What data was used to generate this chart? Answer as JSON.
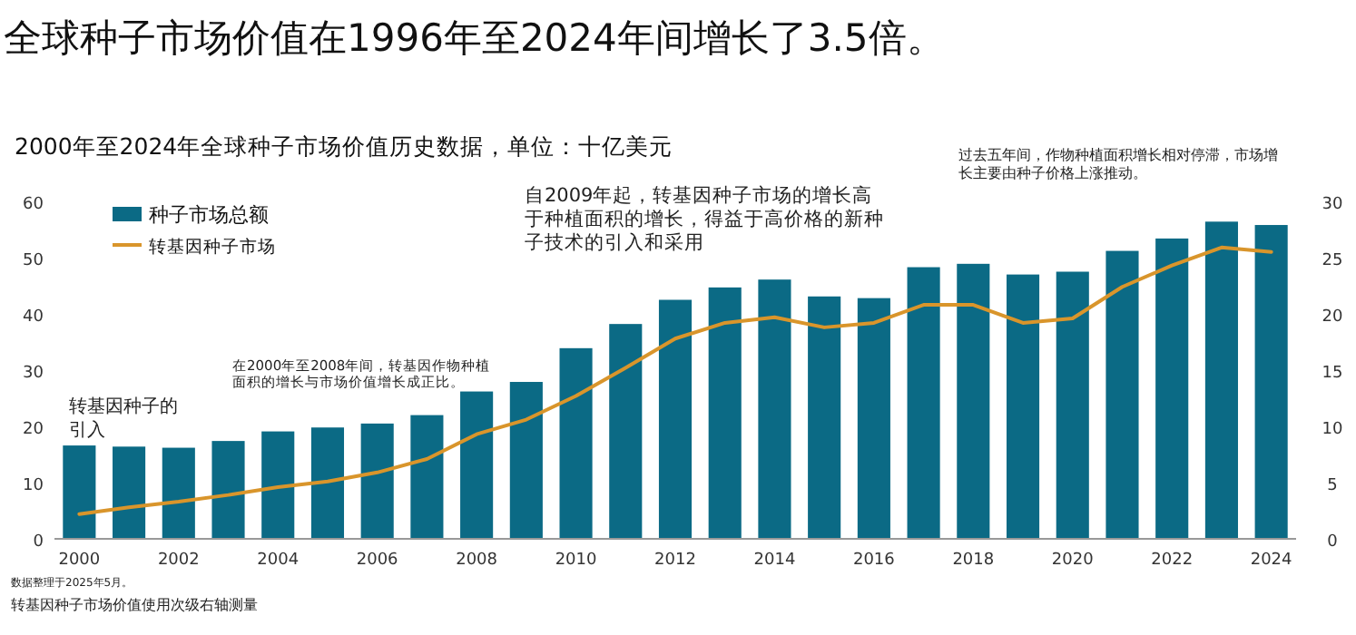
{
  "chart_data": {
    "type": "bar",
    "title": "全球种子市场价值在1996年至2024年间增长了3.5倍。",
    "subtitle": "2000年至2024年全球种子市场价值历史数据，单位：十亿美元",
    "categories": [
      "2000",
      null,
      "2002",
      null,
      "2004",
      null,
      "2006",
      null,
      "2008",
      null,
      "2010",
      null,
      "2012",
      null,
      "2014",
      null,
      "2016",
      null,
      "2018",
      null,
      "2020",
      null,
      "2022",
      null,
      "2024"
    ],
    "series": [
      {
        "name": "种子市场总额",
        "color": "#0b6a85",
        "values": [
          16.6,
          16.4,
          16.2,
          17.4,
          19.1,
          19.8,
          20.5,
          22.0,
          26.2,
          27.9,
          33.9,
          38.2,
          42.5,
          44.7,
          46.1,
          43.1,
          42.8,
          48.3,
          48.9,
          47.0,
          47.5,
          51.2,
          53.4,
          56.4,
          55.8
        ]
      },
      {
        "name": "转基因种子市场",
        "type": "line",
        "axis": "y2",
        "color": "#d9952b",
        "values": [
          2.2,
          2.8,
          3.3,
          3.9,
          4.6,
          5.1,
          5.9,
          7.1,
          9.3,
          10.6,
          12.7,
          15.2,
          17.8,
          19.2,
          19.7,
          18.8,
          19.2,
          20.8,
          20.8,
          19.2,
          19.6,
          22.4,
          24.3,
          25.9,
          25.5
        ]
      }
    ],
    "ylim": [
      0,
      60
    ],
    "yticks": [
      0,
      10,
      20,
      30,
      40,
      50,
      60
    ],
    "y2lim": [
      0,
      30
    ],
    "y2ticks": [
      0,
      5,
      10,
      15,
      20,
      25,
      30
    ],
    "legend": "top left",
    "grid": false,
    "marker": "none",
    "line_style": "solid",
    "annotations": [
      "转基因种子的引入",
      "在2000年至2008年间，转基因作物种植面积的增长与市场价值增长成正比。",
      "自2009年起，转基因种子市场的增长高于种植面积的增长，得益于高价格的新种子技术的引入和采用",
      "过去五年间，作物种植面积增长相对停滞，市场增长主要由种子价格上涨推动。",
      "数据整理于2025年5月。",
      "转基因种子市场价值使用次级右轴测量"
    ]
  }
}
